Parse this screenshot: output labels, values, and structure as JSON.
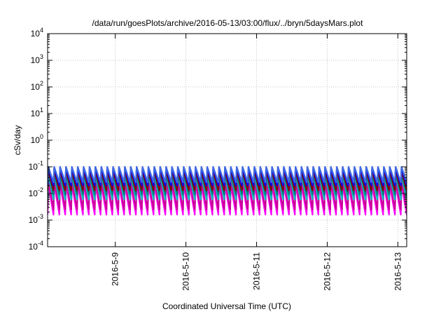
{
  "chart_data": {
    "type": "line",
    "title": "/data/run/goesPlots/archive/2016-05-13/03:00/flux/../bryn/5daysMars.plot",
    "xlabel": "Coordinated Universal Time (UTC)",
    "ylabel": "cSv/day",
    "yscale": "log",
    "ylim": [
      0.0001,
      10000
    ],
    "xlim": [
      "2016-05-08T01:00",
      "2016-05-13T03:00"
    ],
    "grid": true,
    "y_ticks": [
      {
        "base": "10",
        "exp": "-4"
      },
      {
        "base": "10",
        "exp": "-3"
      },
      {
        "base": "10",
        "exp": "-2"
      },
      {
        "base": "10",
        "exp": "-1"
      },
      {
        "base": "10",
        "exp": "0"
      },
      {
        "base": "10",
        "exp": "1"
      },
      {
        "base": "10",
        "exp": "2"
      },
      {
        "base": "10",
        "exp": "3"
      },
      {
        "base": "10",
        "exp": "4"
      }
    ],
    "x_ticks": [
      {
        "label": "2016-5-9",
        "date": "2016-05-09T00:00"
      },
      {
        "label": "2016-5-10",
        "date": "2016-05-10T00:00"
      },
      {
        "label": "2016-5-11",
        "date": "2016-05-11T00:00"
      },
      {
        "label": "2016-5-12",
        "date": "2016-05-12T00:00"
      },
      {
        "label": "2016-5-13",
        "date": "2016-05-13T00:00"
      }
    ],
    "sawtooth_period_hours": 2,
    "series": [
      {
        "color": "#ff00ff",
        "peak": 0.022,
        "trough": 0.0016
      },
      {
        "color": "#cc0099",
        "peak": 0.03,
        "trough": 0.0025
      },
      {
        "color": "#00bfbf",
        "peak": 0.05,
        "trough": 0.006
      },
      {
        "color": "#008080",
        "peak": 0.06,
        "trough": 0.009
      },
      {
        "color": "#8b0000",
        "peak": 0.075,
        "trough": 0.013
      },
      {
        "color": "#0000ff",
        "peak": 0.09,
        "trough": 0.02
      },
      {
        "color": "#4169e1",
        "peak": 0.1,
        "trough": 0.026
      }
    ]
  }
}
